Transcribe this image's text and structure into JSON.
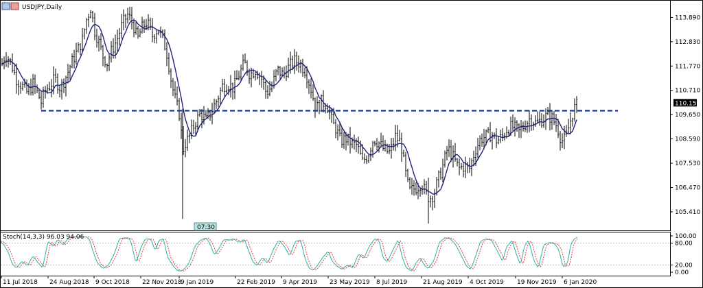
{
  "window": {
    "symbol_title": "USDJPY,Daily",
    "time_marker": "07:30",
    "icon": "chart-window-icon"
  },
  "chart_data": [
    {
      "type": "candlestick",
      "title": "USDJPY,Daily",
      "ylim": [
        104.6,
        114.62
      ],
      "yticks": [
        "113.890",
        "112.830",
        "111.770",
        "110.710",
        "109.650",
        "108.590",
        "107.530",
        "106.470",
        "105.410"
      ],
      "ytick_values": [
        113.89,
        112.83,
        111.77,
        110.71,
        109.65,
        108.59,
        107.53,
        106.47,
        105.41
      ],
      "xticks": [
        "11 Jul 2018",
        "24 Aug 2018",
        "9 Oct 2018",
        "22 Nov 2018",
        "9 Jan 2019",
        "22 Feb 2019",
        "9 Apr 2019",
        "23 May 2019",
        "8 Jul 2019",
        "21 Aug 2019",
        "4 Oct 2019",
        "19 Nov 2019",
        "6 Jan 2020"
      ],
      "current_price": "110.153",
      "current_price_value": 110.153,
      "support_level": 109.82,
      "moving_average_color": "#1a237e",
      "support_line_color": "#1f3c88",
      "candle_color": "#000000",
      "close_path": [
        [
          0,
          111.6
        ],
        [
          8,
          112.3
        ],
        [
          16,
          111.9
        ],
        [
          24,
          111.2
        ],
        [
          32,
          110.9
        ],
        [
          40,
          110.6
        ],
        [
          48,
          111.0
        ],
        [
          56,
          110.5
        ],
        [
          60,
          110.2
        ],
        [
          66,
          110.7
        ],
        [
          72,
          110.9
        ],
        [
          80,
          111.2
        ],
        [
          88,
          110.8
        ],
        [
          96,
          111.3
        ],
        [
          104,
          111.9
        ],
        [
          112,
          112.4
        ],
        [
          120,
          112.9
        ],
        [
          126,
          113.8
        ],
        [
          132,
          114.3
        ],
        [
          138,
          113.3
        ],
        [
          144,
          112.8
        ],
        [
          150,
          112.2
        ],
        [
          156,
          111.9
        ],
        [
          162,
          112.4
        ],
        [
          170,
          112.9
        ],
        [
          178,
          113.6
        ],
        [
          186,
          114.0
        ],
        [
          194,
          113.6
        ],
        [
          200,
          112.9
        ],
        [
          206,
          113.4
        ],
        [
          214,
          113.7
        ],
        [
          222,
          113.1
        ],
        [
          230,
          113.4
        ],
        [
          238,
          112.9
        ],
        [
          244,
          112.2
        ],
        [
          250,
          111.0
        ],
        [
          256,
          110.2
        ],
        [
          262,
          109.6
        ],
        [
          266,
          108.1
        ],
        [
          270,
          108.4
        ],
        [
          276,
          108.7
        ],
        [
          284,
          109.3
        ],
        [
          292,
          109.7
        ],
        [
          300,
          109.4
        ],
        [
          308,
          109.8
        ],
        [
          316,
          110.3
        ],
        [
          324,
          110.9
        ],
        [
          332,
          111.0
        ],
        [
          340,
          110.8
        ],
        [
          348,
          111.4
        ],
        [
          356,
          111.9
        ],
        [
          364,
          111.4
        ],
        [
          372,
          111.6
        ],
        [
          380,
          111.3
        ],
        [
          388,
          110.6
        ],
        [
          396,
          110.9
        ],
        [
          404,
          111.6
        ],
        [
          412,
          111.4
        ],
        [
          420,
          111.7
        ],
        [
          428,
          112.0
        ],
        [
          436,
          111.9
        ],
        [
          444,
          111.6
        ],
        [
          452,
          110.9
        ],
        [
          460,
          109.9
        ],
        [
          468,
          110.2
        ],
        [
          476,
          110.1
        ],
        [
          484,
          109.3
        ],
        [
          490,
          109.0
        ],
        [
          496,
          108.5
        ],
        [
          504,
          108.6
        ],
        [
          512,
          108.4
        ],
        [
          520,
          108.3
        ],
        [
          528,
          107.6
        ],
        [
          536,
          107.9
        ],
        [
          544,
          108.6
        ],
        [
          552,
          108.4
        ],
        [
          560,
          108.1
        ],
        [
          568,
          108.0
        ],
        [
          576,
          108.7
        ],
        [
          584,
          108.4
        ],
        [
          590,
          107.2
        ],
        [
          596,
          106.3
        ],
        [
          602,
          106.4
        ],
        [
          608,
          106.5
        ],
        [
          614,
          106.7
        ],
        [
          620,
          106.2
        ],
        [
          626,
          106.0
        ],
        [
          632,
          106.2
        ],
        [
          638,
          106.8
        ],
        [
          644,
          107.3
        ],
        [
          652,
          108.2
        ],
        [
          660,
          107.8
        ],
        [
          668,
          107.3
        ],
        [
          676,
          107.4
        ],
        [
          684,
          107.3
        ],
        [
          692,
          108.1
        ],
        [
          700,
          108.6
        ],
        [
          708,
          108.7
        ],
        [
          716,
          108.8
        ],
        [
          724,
          108.5
        ],
        [
          732,
          108.7
        ],
        [
          740,
          109.1
        ],
        [
          748,
          109.1
        ],
        [
          756,
          108.9
        ],
        [
          764,
          109.2
        ],
        [
          772,
          109.5
        ],
        [
          780,
          109.3
        ],
        [
          788,
          109.4
        ],
        [
          796,
          109.6
        ],
        [
          804,
          109.5
        ],
        [
          812,
          109.1
        ],
        [
          818,
          108.5
        ],
        [
          824,
          108.6
        ],
        [
          830,
          109.3
        ],
        [
          836,
          109.9
        ],
        [
          842,
          110.15
        ]
      ],
      "events": [
        {
          "x": 266,
          "low": 105.1,
          "high": 109.9
        },
        {
          "x": 624,
          "low": 104.9,
          "high": 106.9
        }
      ]
    },
    {
      "type": "line",
      "title": "Stoch(14,3,3) 96.03 94.06",
      "ylim": [
        0,
        100
      ],
      "yticks": [
        "100.00",
        "80.00",
        "20.00",
        "0.00"
      ],
      "ytick_values": [
        100,
        80,
        20,
        0
      ],
      "levels": [
        20,
        80
      ],
      "main_color": "#2bb0a6",
      "signal_color": "#e53935",
      "pivots": [
        [
          0,
          85
        ],
        [
          6,
          75
        ],
        [
          12,
          55
        ],
        [
          18,
          22
        ],
        [
          24,
          12
        ],
        [
          32,
          30
        ],
        [
          40,
          18
        ],
        [
          48,
          45
        ],
        [
          56,
          25
        ],
        [
          62,
          12
        ],
        [
          70,
          85
        ],
        [
          78,
          70
        ],
        [
          84,
          90
        ],
        [
          92,
          75
        ],
        [
          100,
          95
        ],
        [
          108,
          98
        ],
        [
          116,
          96
        ],
        [
          124,
          98
        ],
        [
          130,
          92
        ],
        [
          136,
          55
        ],
        [
          142,
          25
        ],
        [
          150,
          10
        ],
        [
          158,
          20
        ],
        [
          166,
          48
        ],
        [
          174,
          92
        ],
        [
          182,
          95
        ],
        [
          190,
          90
        ],
        [
          198,
          25
        ],
        [
          206,
          72
        ],
        [
          212,
          92
        ],
        [
          220,
          90
        ],
        [
          226,
          60
        ],
        [
          232,
          88
        ],
        [
          238,
          92
        ],
        [
          244,
          42
        ],
        [
          252,
          18
        ],
        [
          258,
          5
        ],
        [
          264,
          3
        ],
        [
          270,
          12
        ],
        [
          276,
          28
        ],
        [
          284,
          72
        ],
        [
          292,
          88
        ],
        [
          300,
          95
        ],
        [
          306,
          78
        ],
        [
          312,
          48
        ],
        [
          318,
          62
        ],
        [
          326,
          90
        ],
        [
          334,
          88
        ],
        [
          340,
          92
        ],
        [
          348,
          82
        ],
        [
          356,
          90
        ],
        [
          362,
          60
        ],
        [
          368,
          30
        ],
        [
          374,
          18
        ],
        [
          382,
          40
        ],
        [
          390,
          25
        ],
        [
          398,
          62
        ],
        [
          406,
          88
        ],
        [
          414,
          72
        ],
        [
          422,
          45
        ],
        [
          430,
          85
        ],
        [
          438,
          88
        ],
        [
          444,
          40
        ],
        [
          450,
          12
        ],
        [
          456,
          5
        ],
        [
          462,
          18
        ],
        [
          470,
          40
        ],
        [
          478,
          58
        ],
        [
          484,
          30
        ],
        [
          490,
          18
        ],
        [
          498,
          8
        ],
        [
          506,
          20
        ],
        [
          514,
          12
        ],
        [
          522,
          50
        ],
        [
          530,
          38
        ],
        [
          538,
          72
        ],
        [
          546,
          92
        ],
        [
          552,
          88
        ],
        [
          558,
          40
        ],
        [
          564,
          28
        ],
        [
          572,
          60
        ],
        [
          580,
          90
        ],
        [
          586,
          40
        ],
        [
          592,
          12
        ],
        [
          600,
          3
        ],
        [
          606,
          25
        ],
        [
          612,
          40
        ],
        [
          618,
          20
        ],
        [
          624,
          10
        ],
        [
          632,
          32
        ],
        [
          640,
          82
        ],
        [
          648,
          95
        ],
        [
          656,
          92
        ],
        [
          664,
          75
        ],
        [
          672,
          45
        ],
        [
          680,
          15
        ],
        [
          686,
          8
        ],
        [
          692,
          40
        ],
        [
          700,
          85
        ],
        [
          708,
          92
        ],
        [
          716,
          88
        ],
        [
          724,
          60
        ],
        [
          732,
          30
        ],
        [
          738,
          70
        ],
        [
          746,
          88
        ],
        [
          752,
          50
        ],
        [
          758,
          20
        ],
        [
          764,
          72
        ],
        [
          770,
          88
        ],
        [
          778,
          30
        ],
        [
          784,
          12
        ],
        [
          792,
          75
        ],
        [
          800,
          82
        ],
        [
          808,
          78
        ],
        [
          814,
          62
        ],
        [
          820,
          15
        ],
        [
          826,
          20
        ],
        [
          832,
          80
        ],
        [
          838,
          94
        ],
        [
          842,
          96
        ]
      ]
    }
  ]
}
